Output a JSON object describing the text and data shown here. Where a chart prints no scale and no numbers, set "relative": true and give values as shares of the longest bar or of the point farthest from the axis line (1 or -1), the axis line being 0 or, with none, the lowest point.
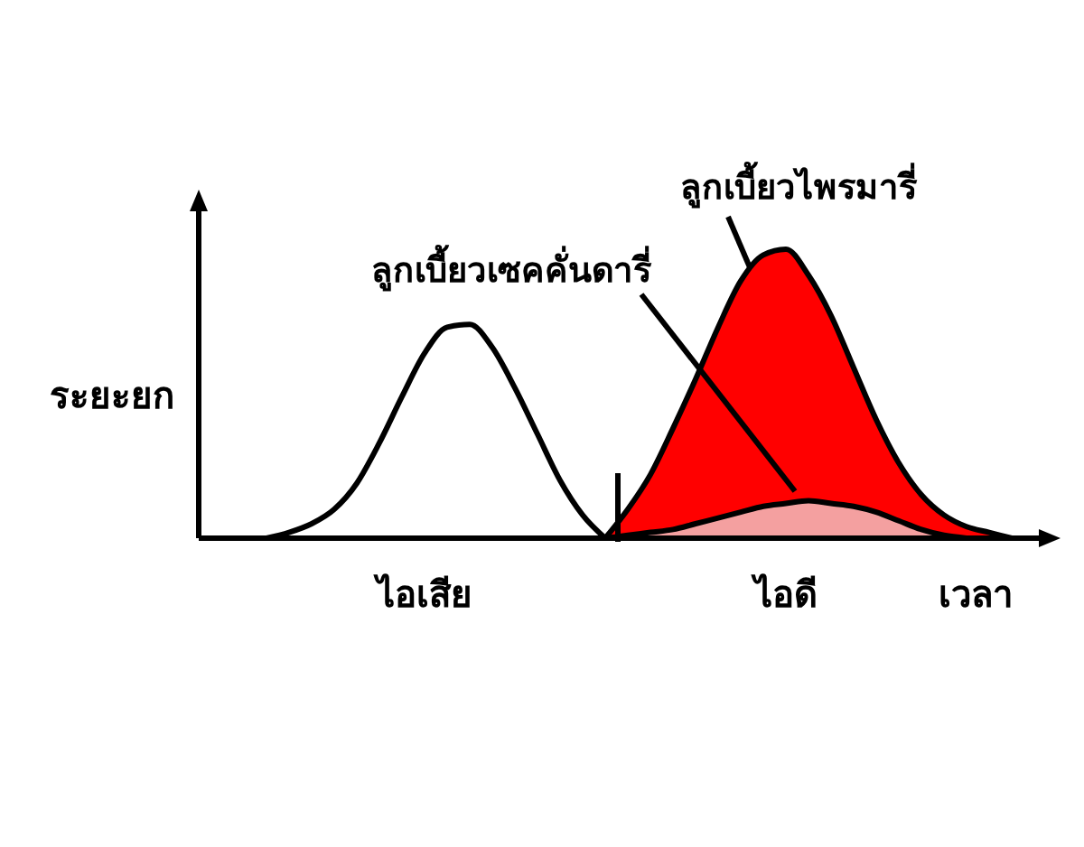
{
  "chart_data": {
    "type": "area",
    "relative": true,
    "xlabel": "เวลา",
    "ylabel": "ระยะยก",
    "categories": [
      null,
      null,
      null,
      null,
      null,
      null,
      null,
      null,
      null,
      null,
      "ไอเสีย",
      null,
      null,
      null,
      null,
      null,
      null,
      null,
      null,
      null,
      null,
      null,
      null,
      null,
      null,
      null,
      "ไอดี",
      null,
      null,
      null,
      null,
      null,
      null,
      null,
      null,
      null,
      null
    ],
    "series": [
      {
        "color": "#ffffff",
        "values": [
          null,
          null,
          null,
          0,
          0.02,
          0.05,
          0.1,
          0.19,
          0.33,
          0.49,
          0.64,
          0.73,
          0.74,
          0.66,
          0.52,
          0.36,
          0.2,
          0.08,
          0,
          null,
          null,
          null,
          null,
          null,
          null,
          null,
          null,
          null,
          null,
          null,
          null,
          null,
          null,
          null,
          null,
          null,
          null
        ]
      },
      {
        "color": "#ff0000",
        "values": [
          null,
          null,
          null,
          null,
          null,
          null,
          null,
          null,
          null,
          null,
          null,
          null,
          null,
          null,
          null,
          null,
          null,
          null,
          0,
          0.1,
          0.22,
          0.38,
          0.55,
          0.73,
          0.89,
          0.98,
          1,
          0.91,
          0.77,
          0.59,
          0.41,
          0.26,
          0.15,
          0.08,
          0.04,
          0.02,
          0
        ]
      },
      {
        "color": "#f4a0a0",
        "values": [
          null,
          null,
          null,
          null,
          null,
          null,
          null,
          null,
          null,
          null,
          null,
          null,
          null,
          null,
          null,
          null,
          null,
          null,
          0,
          0.01,
          0.02,
          0.03,
          0.05,
          0.07,
          0.09,
          0.11,
          0.12,
          0.13,
          0.12,
          0.11,
          0.09,
          0.06,
          0.03,
          0.01,
          0,
          null,
          null
        ]
      }
    ],
    "annotations": [
      "ลูกเบี้ยวไพรมารี่",
      "ลูกเบี้ยวเซคคั่นดารี่"
    ]
  }
}
